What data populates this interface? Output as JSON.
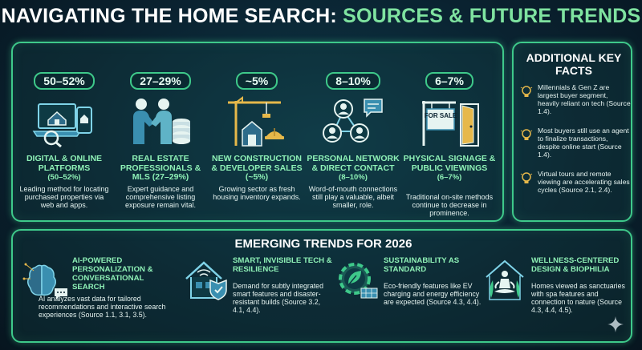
{
  "title": {
    "part1": "NAVIGATING THE HOME SEARCH:",
    "part2": "SOURCES & FUTURE TRENDS"
  },
  "sources": [
    {
      "pct": "50–52%",
      "icon": "laptop-phone-home-icon",
      "heading": "DIGITAL & ONLINE PLATFORMS",
      "sub": "(50–52%)",
      "desc": "Leading method for locating purchased properties via web and apps."
    },
    {
      "pct": "27–29%",
      "icon": "handshake-database-icon",
      "heading": "REAL ESTATE PROFESSIONALS & MLS (27–29%)",
      "sub": "",
      "desc": "Expert guidance and comprehensive listing exposure remain vital."
    },
    {
      "pct": "~5%",
      "icon": "crane-construction-icon",
      "heading": "NEW CONSTRUCTION & DEVELOPER SALES (~5%)",
      "sub": "",
      "desc": "Growing sector as fresh housing inventory expands."
    },
    {
      "pct": "8–10%",
      "icon": "people-network-icon",
      "heading": "PERSONAL NETWORK & DIRECT CONTACT",
      "sub": "(8–10%)",
      "desc": "Word-of-mouth connections still play a valuable, albeit smaller, role."
    },
    {
      "pct": "6–7%",
      "icon": "for-sale-sign-icon",
      "heading": "PHYSICAL SIGNAGE & PUBLIC VIEWINGS",
      "sub": "(6–7%)",
      "desc": "Traditional on-site methods continue to decrease in prominence.",
      "sign_text": "FOR SALE"
    }
  ],
  "facts": {
    "title": "ADDITIONAL KEY FACTS",
    "items": [
      "Millennials & Gen Z are largest buyer segment, heavily reliant on tech (Source 1.4).",
      "Most buyers still use an agent to finalize transactions, despite online start (Source 1.4).",
      "Virtual tours and remote viewing are accelerating sales cycles (Source 2.1, 2.4)."
    ]
  },
  "trends": {
    "title": "EMERGING TRENDS FOR 2026",
    "items": [
      {
        "icon": "ai-brain-icon",
        "heading": "AI-POWERED PERSONALIZATION & CONVERSATIONAL SEARCH",
        "desc": "AI analyzes vast data for tailored recommendations and interactive search experiences (Source 1.1, 3.1, 3.5)."
      },
      {
        "icon": "smart-home-icon",
        "heading": "SMART, INVISIBLE TECH & RESILIENCE",
        "desc": "Demand for subtly integrated smart features and disaster-resistant builds (Source 3.2, 4.1, 4.4)."
      },
      {
        "icon": "sustainability-gear-icon",
        "heading": "SUSTAINABILITY AS STANDARD",
        "desc": "Eco-friendly features like EV charging and energy efficiency are expected (Source 4.3, 4.4)."
      },
      {
        "icon": "meditation-wellness-icon",
        "heading": "WELLNESS-CENTERED DESIGN & BIOPHILIA",
        "desc": "Homes viewed as sanctuaries with spa features and connection to nature (Source 4.3, 4.4, 4.5)."
      }
    ]
  },
  "colors": {
    "accent": "#3ec98a",
    "heading_green": "#8ef0b6",
    "background": "#0a2230"
  }
}
